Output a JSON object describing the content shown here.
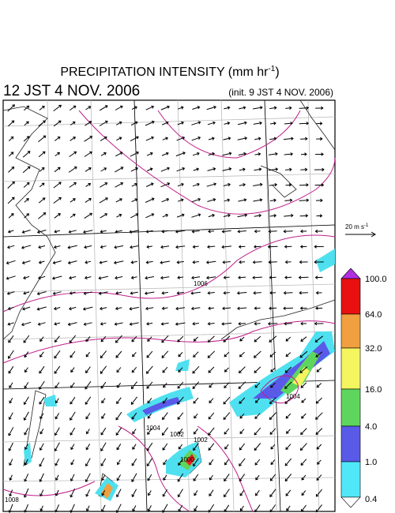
{
  "header": {
    "title": "PRECIPITATION INTENSITY (mm hr",
    "title_exponent": "-1",
    "title_close": ")",
    "valid_time": "12 JST 4 NOV. 2006",
    "init_time": "(init. 9 JST 4 NOV. 2006)"
  },
  "wind_reference": {
    "label": "20 m s",
    "exponent": "-1"
  },
  "colorbar": {
    "labels": [
      "100.0",
      "64.0",
      "32.0",
      "16.0",
      "4.0",
      "1.0",
      "0.4"
    ]
  },
  "isobars": {
    "labels": [
      "1006",
      "1004",
      "1002",
      "1002",
      "1000",
      "1004",
      "1008"
    ]
  }
}
